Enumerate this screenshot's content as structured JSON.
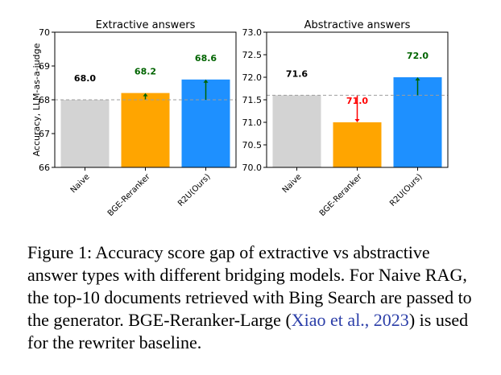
{
  "chart_data": [
    {
      "type": "bar",
      "title": "Extractive answers",
      "ylabel": "Accuracy, LLM-as-a-judge",
      "categories": [
        "Naive",
        "BGE-Reranker",
        "R2U(Ours)"
      ],
      "values": [
        68.0,
        68.2,
        68.6
      ],
      "value_labels": [
        "68.0",
        "68.2",
        "68.6"
      ],
      "ylim": [
        66,
        70
      ],
      "yticks": [
        "66",
        "67",
        "68",
        "69",
        "70"
      ],
      "baseline": 68.0,
      "bar_colors": [
        "#d3d3d3",
        "#ffa500",
        "#1e90ff"
      ],
      "label_colors": [
        "#000000",
        "#006400",
        "#006400"
      ],
      "arrow_colors": [
        null,
        "#006400",
        "#006400"
      ]
    },
    {
      "type": "bar",
      "title": "Abstractive answers",
      "categories": [
        "Naive",
        "BGE-Reranker",
        "R2U(Ours)"
      ],
      "values": [
        71.6,
        71.0,
        72.0
      ],
      "value_labels": [
        "71.6",
        "71.0",
        "72.0"
      ],
      "ylim": [
        70.0,
        73.0
      ],
      "yticks": [
        "70.0",
        "70.5",
        "71.0",
        "71.5",
        "72.0",
        "72.5",
        "73.0"
      ],
      "baseline": 71.6,
      "bar_colors": [
        "#d3d3d3",
        "#ffa500",
        "#1e90ff"
      ],
      "label_colors": [
        "#000000",
        "#ff0000",
        "#006400"
      ],
      "arrow_colors": [
        null,
        "#ff0000",
        "#006400"
      ]
    }
  ],
  "caption": {
    "text_before": "Figure 1: Accuracy score gap of extractive vs abstractive answer types with different bridging models. For Naive RAG, the top-10 documents retrieved with Bing Search are passed to the generator. BGE-Reranker-Large (",
    "link_text": "Xiao et al., 2023",
    "text_after": ") is used for the rewriter baseline."
  }
}
